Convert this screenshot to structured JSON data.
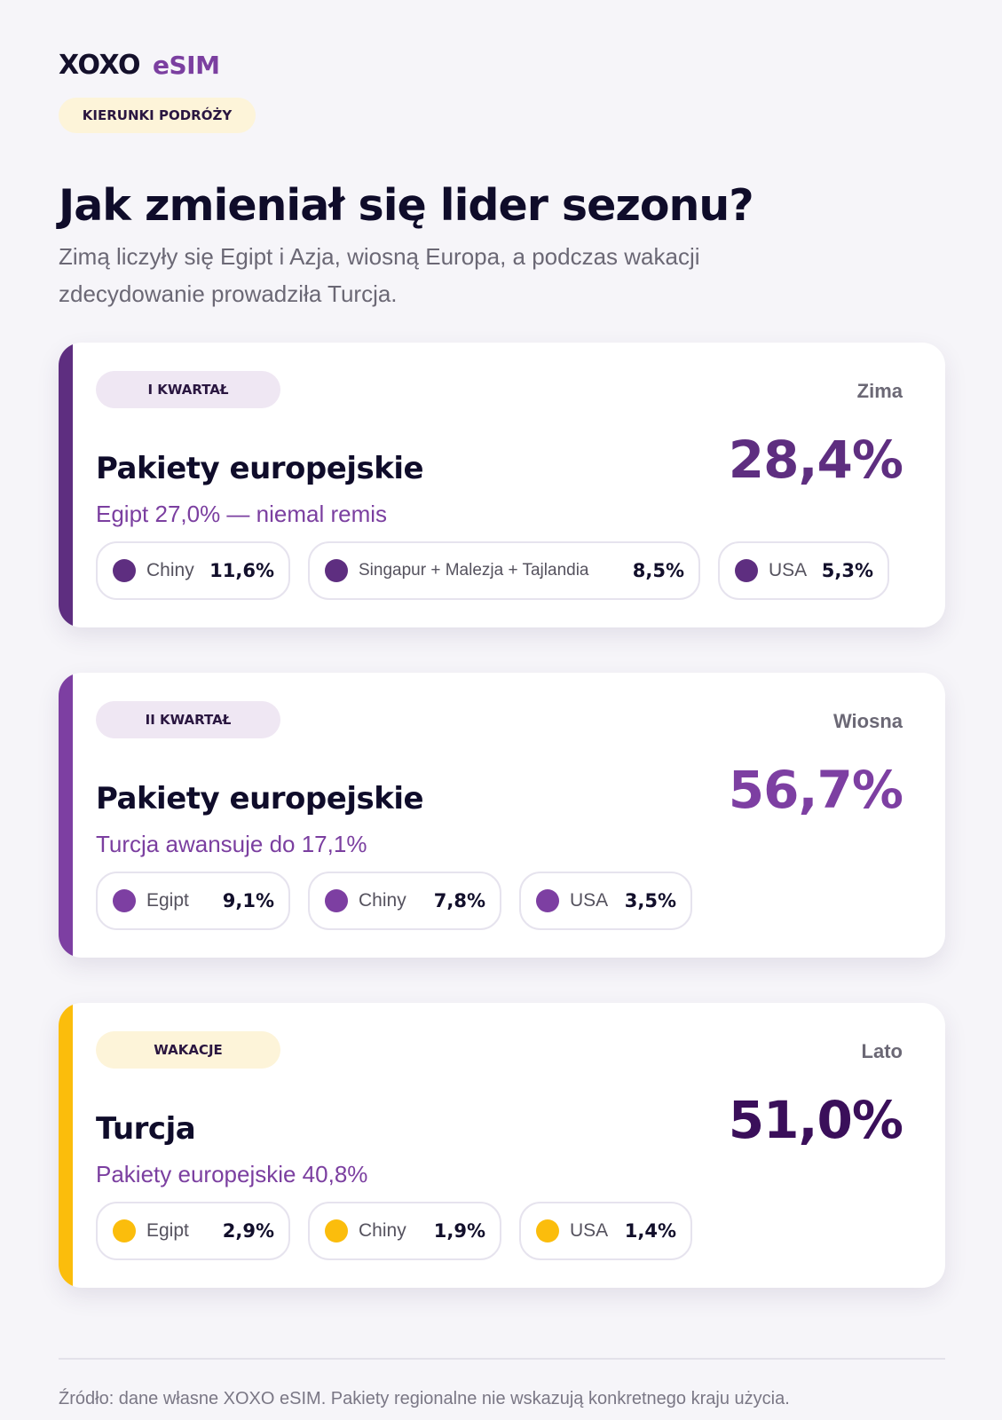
{
  "brand": {
    "part1": "XOXO",
    "part2": "eSIM"
  },
  "tag": "KIERUNKI PODRÓŻY",
  "title": "Jak zmieniał się lider sezonu?",
  "subtitle": "Zimą liczyły się Egipt i Azja, wiosną Europa, a podczas wakacji zdecydowanie prowadziła Turcja.",
  "colors": {
    "q1": "#5e2e80",
    "q2": "#7d3fa2",
    "summer": "#fbbd0c",
    "summer_badge_bg": "#fdf4d9",
    "purple_badge_bg": "#efe7f3"
  },
  "cards": [
    {
      "badge": "I KWARTAŁ",
      "season": "Zima",
      "leader": "Pakiety europejskie",
      "share": "28,4%",
      "note": "Egipt 27,0% — niemal remis",
      "items": [
        {
          "name": "Chiny",
          "value": "11,6%"
        },
        {
          "name": "Singapur + Malezja + Tajlandia",
          "value": "8,5%"
        },
        {
          "name": "USA",
          "value": "5,3%"
        }
      ]
    },
    {
      "badge": "II KWARTAŁ",
      "season": "Wiosna",
      "leader": "Pakiety europejskie",
      "share": "56,7%",
      "note": "Turcja awansuje do 17,1%",
      "items": [
        {
          "name": "Egipt",
          "value": "9,1%"
        },
        {
          "name": "Chiny",
          "value": "7,8%"
        },
        {
          "name": "USA",
          "value": "3,5%"
        }
      ]
    },
    {
      "badge": "WAKACJE",
      "season": "Lato",
      "leader": "Turcja",
      "share": "51,0%",
      "note": "Pakiety europejskie 40,8%",
      "items": [
        {
          "name": "Egipt",
          "value": "2,9%"
        },
        {
          "name": "Chiny",
          "value": "1,9%"
        },
        {
          "name": "USA",
          "value": "1,4%"
        }
      ]
    }
  ],
  "source": "Źródło: dane własne XOXO eSIM. Pakiety regionalne nie wskazują konkretnego kraju użycia."
}
